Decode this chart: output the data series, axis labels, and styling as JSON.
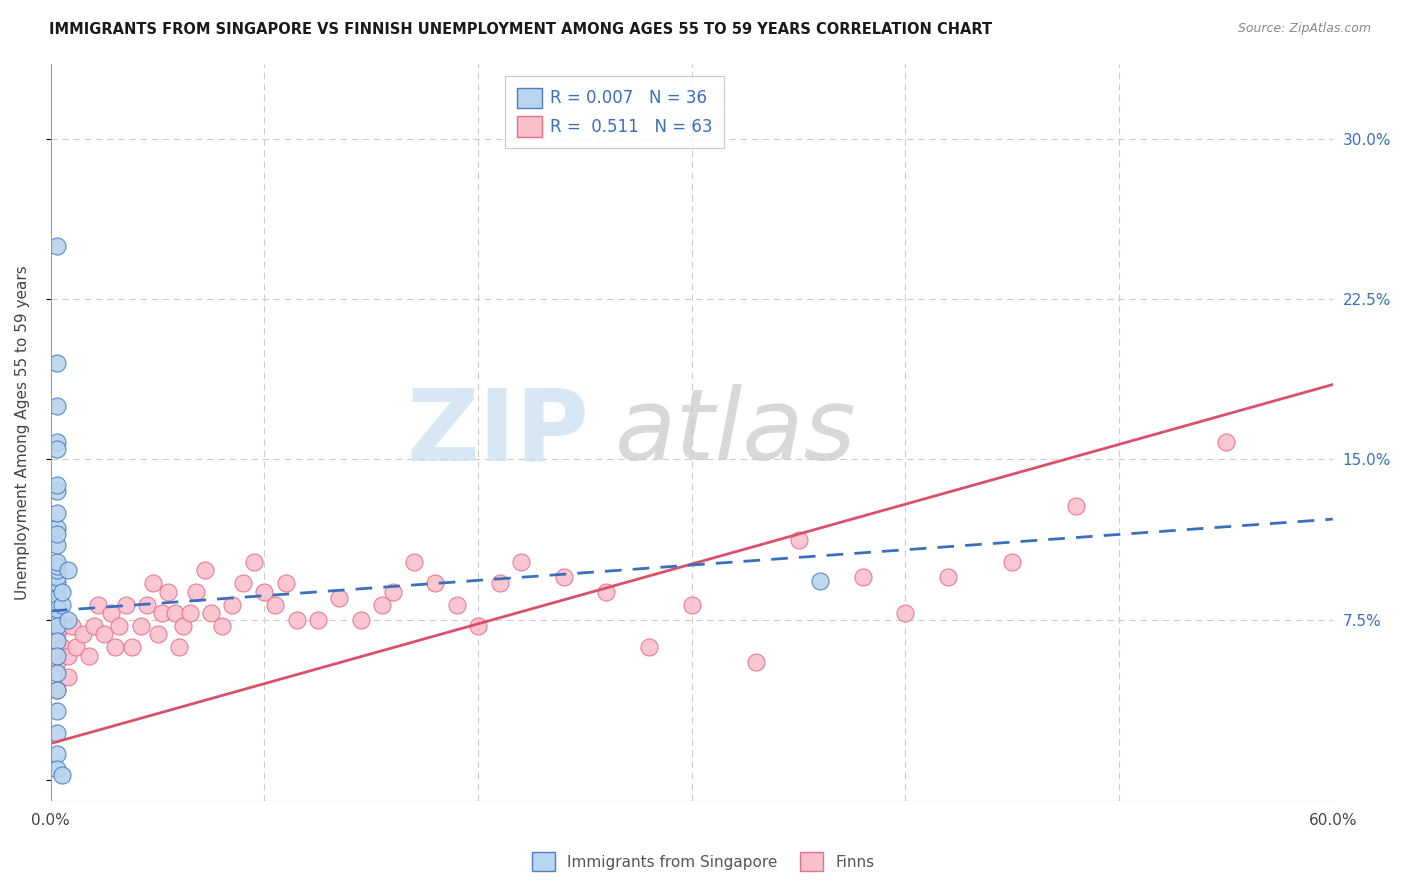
{
  "title": "IMMIGRANTS FROM SINGAPORE VS FINNISH UNEMPLOYMENT AMONG AGES 55 TO 59 YEARS CORRELATION CHART",
  "source": "Source: ZipAtlas.com",
  "ylabel": "Unemployment Among Ages 55 to 59 years",
  "xlim": [
    0.0,
    0.6
  ],
  "ylim": [
    -0.01,
    0.335
  ],
  "R_singapore": 0.007,
  "N_singapore": 36,
  "R_finns": 0.511,
  "N_finns": 63,
  "color_singapore_fill": "#b8d4ee",
  "color_singapore_edge": "#4a7fc1",
  "color_finns_fill": "#f9c0cc",
  "color_finns_edge": "#e8708a",
  "color_singapore_line": "#3a6fbd",
  "color_finns_line": "#d9506a",
  "color_text_blue": "#3a6fbd",
  "background_color": "#ffffff",
  "sg_trend_start_y": 0.079,
  "sg_trend_end_y": 0.122,
  "fn_trend_start_y": 0.017,
  "fn_trend_end_y": 0.185,
  "singapore_x": [
    0.003,
    0.003,
    0.003,
    0.003,
    0.003,
    0.003,
    0.003,
    0.003,
    0.003,
    0.003,
    0.003,
    0.003,
    0.003,
    0.003,
    0.003,
    0.003,
    0.003,
    0.003,
    0.003,
    0.003,
    0.003,
    0.003,
    0.003,
    0.003,
    0.003,
    0.003,
    0.003,
    0.003,
    0.005,
    0.005,
    0.008,
    0.008,
    0.36,
    0.005,
    0.003,
    0.003
  ],
  "singapore_y": [
    0.075,
    0.082,
    0.088,
    0.092,
    0.095,
    0.098,
    0.1,
    0.102,
    0.085,
    0.08,
    0.072,
    0.065,
    0.058,
    0.05,
    0.042,
    0.032,
    0.022,
    0.012,
    0.005,
    0.11,
    0.118,
    0.125,
    0.158,
    0.195,
    0.175,
    0.155,
    0.135,
    0.115,
    0.082,
    0.088,
    0.075,
    0.098,
    0.093,
    0.002,
    0.25,
    0.138
  ],
  "finns_x": [
    0.003,
    0.003,
    0.003,
    0.005,
    0.005,
    0.008,
    0.008,
    0.01,
    0.012,
    0.015,
    0.018,
    0.02,
    0.022,
    0.025,
    0.028,
    0.03,
    0.032,
    0.035,
    0.038,
    0.042,
    0.045,
    0.048,
    0.05,
    0.052,
    0.055,
    0.058,
    0.06,
    0.062,
    0.065,
    0.068,
    0.072,
    0.075,
    0.08,
    0.085,
    0.09,
    0.095,
    0.1,
    0.105,
    0.11,
    0.115,
    0.125,
    0.135,
    0.145,
    0.155,
    0.16,
    0.17,
    0.18,
    0.19,
    0.2,
    0.21,
    0.22,
    0.24,
    0.26,
    0.28,
    0.3,
    0.33,
    0.35,
    0.38,
    0.4,
    0.42,
    0.45,
    0.48,
    0.55
  ],
  "finns_y": [
    0.042,
    0.055,
    0.068,
    0.062,
    0.072,
    0.048,
    0.058,
    0.072,
    0.062,
    0.068,
    0.058,
    0.072,
    0.082,
    0.068,
    0.078,
    0.062,
    0.072,
    0.082,
    0.062,
    0.072,
    0.082,
    0.092,
    0.068,
    0.078,
    0.088,
    0.078,
    0.062,
    0.072,
    0.078,
    0.088,
    0.098,
    0.078,
    0.072,
    0.082,
    0.092,
    0.102,
    0.088,
    0.082,
    0.092,
    0.075,
    0.075,
    0.085,
    0.075,
    0.082,
    0.088,
    0.102,
    0.092,
    0.082,
    0.072,
    0.092,
    0.102,
    0.095,
    0.088,
    0.062,
    0.082,
    0.055,
    0.112,
    0.095,
    0.078,
    0.095,
    0.102,
    0.128,
    0.158
  ]
}
